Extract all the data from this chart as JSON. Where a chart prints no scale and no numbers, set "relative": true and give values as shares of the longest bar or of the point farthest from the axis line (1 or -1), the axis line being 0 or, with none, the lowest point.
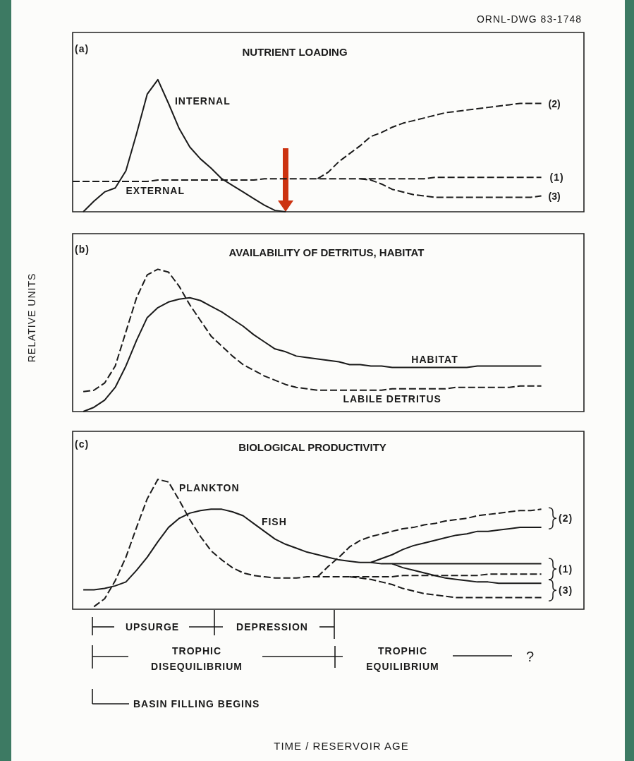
{
  "chart_data": [
    {
      "type": "line",
      "title": "NUTRIENT LOADING",
      "relative": true,
      "marker": "none",
      "categories": [
        null,
        null,
        null,
        null,
        null,
        null,
        null,
        null,
        null,
        null,
        null,
        null,
        null,
        null,
        null,
        null,
        null,
        null,
        null,
        null,
        null,
        null,
        null,
        null,
        null,
        null,
        null,
        null,
        null,
        null,
        null,
        null,
        null,
        null,
        null,
        null,
        null,
        null,
        null,
        null,
        null,
        null,
        null,
        null,
        null,
        null,
        null,
        null,
        null
      ],
      "series": [
        {
          "name": "INTERNAL",
          "color": "#1a1a1a",
          "line_style": "solid",
          "values": [
            null,
            0,
            0.08,
            0.15,
            0.18,
            0.31,
            0.59,
            0.89,
            1,
            0.82,
            0.63,
            0.49,
            0.4,
            0.33,
            0.25,
            0.2,
            0.15,
            0.1,
            0.05,
            0.01,
            0,
            null,
            null,
            null,
            null,
            null,
            null,
            null,
            null,
            null,
            null,
            null,
            null,
            null,
            null,
            null,
            null,
            null,
            null,
            null,
            null,
            null,
            null,
            null,
            null,
            null,
            null,
            null,
            null
          ]
        },
        {
          "name": "EXTERNAL",
          "color": "#1a1a1a",
          "line_style": "dashed",
          "values": [
            0.23,
            0.23,
            0.23,
            0.23,
            0.23,
            0.23,
            0.23,
            0.23,
            0.24,
            0.24,
            0.24,
            0.24,
            0.24,
            0.24,
            0.24,
            0.24,
            0.24,
            0.24,
            0.25,
            0.25,
            0.25,
            0.25,
            0.25,
            0.25,
            0.25,
            0.25,
            0.25,
            0.25,
            0.25,
            0.25,
            0.25,
            0.25,
            0.25,
            0.25,
            0.26,
            0.26,
            0.26,
            0.26,
            0.26,
            0.26,
            0.26,
            0.26,
            0.26,
            0.26,
            0.26,
            null,
            null,
            null,
            null
          ]
        },
        {
          "name": "(2)",
          "color": "#1a1a1a",
          "line_style": "dashed",
          "values": [
            null,
            null,
            null,
            null,
            null,
            null,
            null,
            null,
            null,
            null,
            null,
            null,
            null,
            null,
            null,
            null,
            null,
            null,
            null,
            null,
            null,
            null,
            null,
            0.25,
            0.3,
            0.38,
            0.44,
            0.5,
            0.57,
            0.6,
            0.64,
            0.67,
            0.69,
            0.71,
            0.73,
            0.75,
            0.76,
            0.77,
            0.78,
            0.79,
            0.8,
            0.81,
            0.82,
            0.82,
            0.82,
            null,
            null,
            null,
            null
          ]
        },
        {
          "name": "(3)",
          "color": "#1a1a1a",
          "line_style": "dashed",
          "values": [
            null,
            null,
            null,
            null,
            null,
            null,
            null,
            null,
            null,
            null,
            null,
            null,
            null,
            null,
            null,
            null,
            null,
            null,
            null,
            null,
            null,
            null,
            null,
            null,
            null,
            null,
            null,
            0.25,
            0.24,
            0.21,
            0.17,
            0.15,
            0.13,
            0.12,
            0.11,
            0.11,
            0.11,
            0.11,
            0.11,
            0.11,
            0.11,
            0.11,
            0.11,
            0.11,
            0.12,
            null,
            null,
            null,
            null
          ]
        }
      ],
      "annotations": [
        "(a)",
        "ORNL-DWG 83-1748",
        "(1)"
      ]
    },
    {
      "type": "line",
      "title": "AVAILABILITY OF DETRITUS, HABITAT",
      "ylabel": "RELATIVE UNITS",
      "relative": true,
      "marker": "none",
      "categories": [
        null,
        null,
        null,
        null,
        null,
        null,
        null,
        null,
        null,
        null,
        null,
        null,
        null,
        null,
        null,
        null,
        null,
        null,
        null,
        null,
        null,
        null,
        null,
        null,
        null,
        null,
        null,
        null,
        null,
        null,
        null,
        null,
        null,
        null,
        null,
        null,
        null,
        null,
        null,
        null,
        null,
        null,
        null,
        null,
        null,
        null,
        null,
        null,
        null
      ],
      "series": [
        {
          "name": "HABITAT",
          "color": "#1a1a1a",
          "line_style": "solid",
          "values": [
            null,
            0,
            0.03,
            0.08,
            0.17,
            0.32,
            0.5,
            0.66,
            0.73,
            0.77,
            0.79,
            0.8,
            0.78,
            0.74,
            0.7,
            0.65,
            0.6,
            0.54,
            0.49,
            0.44,
            0.42,
            0.39,
            0.38,
            0.37,
            0.36,
            0.35,
            0.33,
            0.33,
            0.32,
            0.32,
            0.31,
            0.31,
            0.31,
            0.31,
            0.31,
            0.31,
            0.31,
            0.31,
            0.32,
            0.32,
            0.32,
            0.32,
            0.32,
            0.32,
            0.32,
            null,
            null,
            null,
            null
          ]
        },
        {
          "name": "LABILE DETRITUS",
          "color": "#1a1a1a",
          "line_style": "dashed",
          "values": [
            null,
            0.14,
            0.15,
            0.2,
            0.32,
            0.56,
            0.8,
            0.96,
            1,
            0.98,
            0.88,
            0.75,
            0.64,
            0.53,
            0.46,
            0.39,
            0.33,
            0.29,
            0.25,
            0.22,
            0.19,
            0.17,
            0.16,
            0.15,
            0.15,
            0.15,
            0.15,
            0.15,
            0.15,
            0.15,
            0.16,
            0.16,
            0.16,
            0.16,
            0.16,
            0.16,
            0.17,
            0.17,
            0.17,
            0.17,
            0.17,
            0.17,
            0.18,
            0.18,
            0.18,
            null,
            null,
            null,
            null
          ]
        }
      ],
      "annotations": [
        "(b)"
      ]
    },
    {
      "type": "line",
      "title": "BIOLOGICAL PRODUCTIVITY",
      "xlabel": "TIME / RESERVOIR AGE",
      "relative": true,
      "marker": "none",
      "categories": [
        null,
        null,
        null,
        null,
        null,
        null,
        null,
        null,
        null,
        null,
        null,
        null,
        null,
        null,
        null,
        null,
        null,
        null,
        null,
        null,
        null,
        null,
        null,
        null,
        null,
        null,
        null,
        null,
        null,
        null,
        null,
        null,
        null,
        null,
        null,
        null,
        null,
        null,
        null,
        null,
        null,
        null,
        null,
        null,
        null,
        null,
        null,
        null,
        null
      ],
      "series": [
        {
          "name": "PLANKTON",
          "color": "#1a1a1a",
          "line_style": "dashed",
          "values": [
            null,
            null,
            0.02,
            0.08,
            0.22,
            0.4,
            0.63,
            0.85,
            1,
            0.98,
            0.84,
            0.69,
            0.56,
            0.45,
            0.38,
            0.32,
            0.28,
            0.26,
            0.25,
            0.24,
            0.24,
            0.24,
            0.25,
            0.25,
            0.25,
            0.25,
            0.25,
            0.25,
            0.25,
            0.25,
            0.25,
            0.26,
            0.26,
            0.26,
            0.26,
            0.26,
            0.26,
            0.26,
            0.26,
            0.27,
            0.27,
            0.27,
            0.27,
            0.27,
            0.27,
            null,
            null,
            null,
            null
          ]
        },
        {
          "name": "FISH",
          "color": "#1a1a1a",
          "line_style": "solid",
          "values": [
            null,
            0.15,
            0.15,
            0.16,
            0.18,
            0.21,
            0.3,
            0.4,
            0.52,
            0.63,
            0.7,
            0.74,
            0.76,
            0.77,
            0.77,
            0.75,
            0.72,
            0.66,
            0.6,
            0.54,
            0.5,
            0.47,
            0.44,
            0.42,
            0.4,
            0.38,
            0.37,
            0.36,
            0.36,
            0.35,
            0.35,
            0.35,
            0.35,
            0.35,
            0.35,
            0.35,
            0.35,
            0.35,
            0.35,
            0.35,
            0.35,
            0.35,
            0.35,
            0.35,
            0.35,
            null,
            null,
            null,
            null
          ]
        },
        {
          "color": "#1a1a1a",
          "line_style": "dashed",
          "values": [
            null,
            null,
            null,
            null,
            null,
            null,
            null,
            null,
            null,
            null,
            null,
            null,
            null,
            null,
            null,
            null,
            null,
            null,
            null,
            null,
            null,
            null,
            null,
            0.25,
            0.33,
            0.4,
            0.48,
            0.53,
            0.56,
            0.58,
            0.6,
            0.62,
            0.63,
            0.65,
            0.66,
            0.68,
            0.69,
            0.7,
            0.72,
            0.73,
            0.74,
            0.75,
            0.76,
            0.76,
            0.77,
            null,
            null,
            null,
            null
          ]
        },
        {
          "color": "#1a1a1a",
          "line_style": "dashed",
          "values": [
            null,
            null,
            null,
            null,
            null,
            null,
            null,
            null,
            null,
            null,
            null,
            null,
            null,
            null,
            null,
            null,
            null,
            null,
            null,
            null,
            null,
            null,
            null,
            null,
            null,
            null,
            0.25,
            0.24,
            0.23,
            0.21,
            0.19,
            0.16,
            0.14,
            0.12,
            0.11,
            0.1,
            0.09,
            0.09,
            0.09,
            0.09,
            0.09,
            0.09,
            0.09,
            0.09,
            0.09,
            null,
            null,
            null,
            null
          ]
        },
        {
          "color": "#1a1a1a",
          "line_style": "solid",
          "values": [
            null,
            null,
            null,
            null,
            null,
            null,
            null,
            null,
            null,
            null,
            null,
            null,
            null,
            null,
            null,
            null,
            null,
            null,
            null,
            null,
            null,
            null,
            null,
            null,
            null,
            null,
            null,
            null,
            0.36,
            0.39,
            0.42,
            0.46,
            0.49,
            0.51,
            0.53,
            0.55,
            0.57,
            0.58,
            0.6,
            0.6,
            0.61,
            0.62,
            0.63,
            0.63,
            0.63,
            null,
            null,
            null,
            null
          ]
        },
        {
          "color": "#1a1a1a",
          "line_style": "solid",
          "values": [
            null,
            null,
            null,
            null,
            null,
            null,
            null,
            null,
            null,
            null,
            null,
            null,
            null,
            null,
            null,
            null,
            null,
            null,
            null,
            null,
            null,
            null,
            null,
            null,
            null,
            null,
            null,
            null,
            null,
            null,
            0.35,
            0.32,
            0.3,
            0.28,
            0.26,
            0.24,
            0.23,
            0.22,
            0.21,
            0.21,
            0.2,
            0.2,
            0.2,
            0.2,
            0.2,
            null,
            null,
            null,
            null
          ]
        }
      ],
      "annotations": [
        "(c)",
        "(2)",
        "(1)",
        "(3)",
        "UPSURGE",
        "DEPRESSION",
        "TROPHIC DISEQUILIBRIUM",
        "TROPHIC EQUILIBRIUM",
        "?",
        "BASIN FILLING BEGINS"
      ]
    }
  ]
}
